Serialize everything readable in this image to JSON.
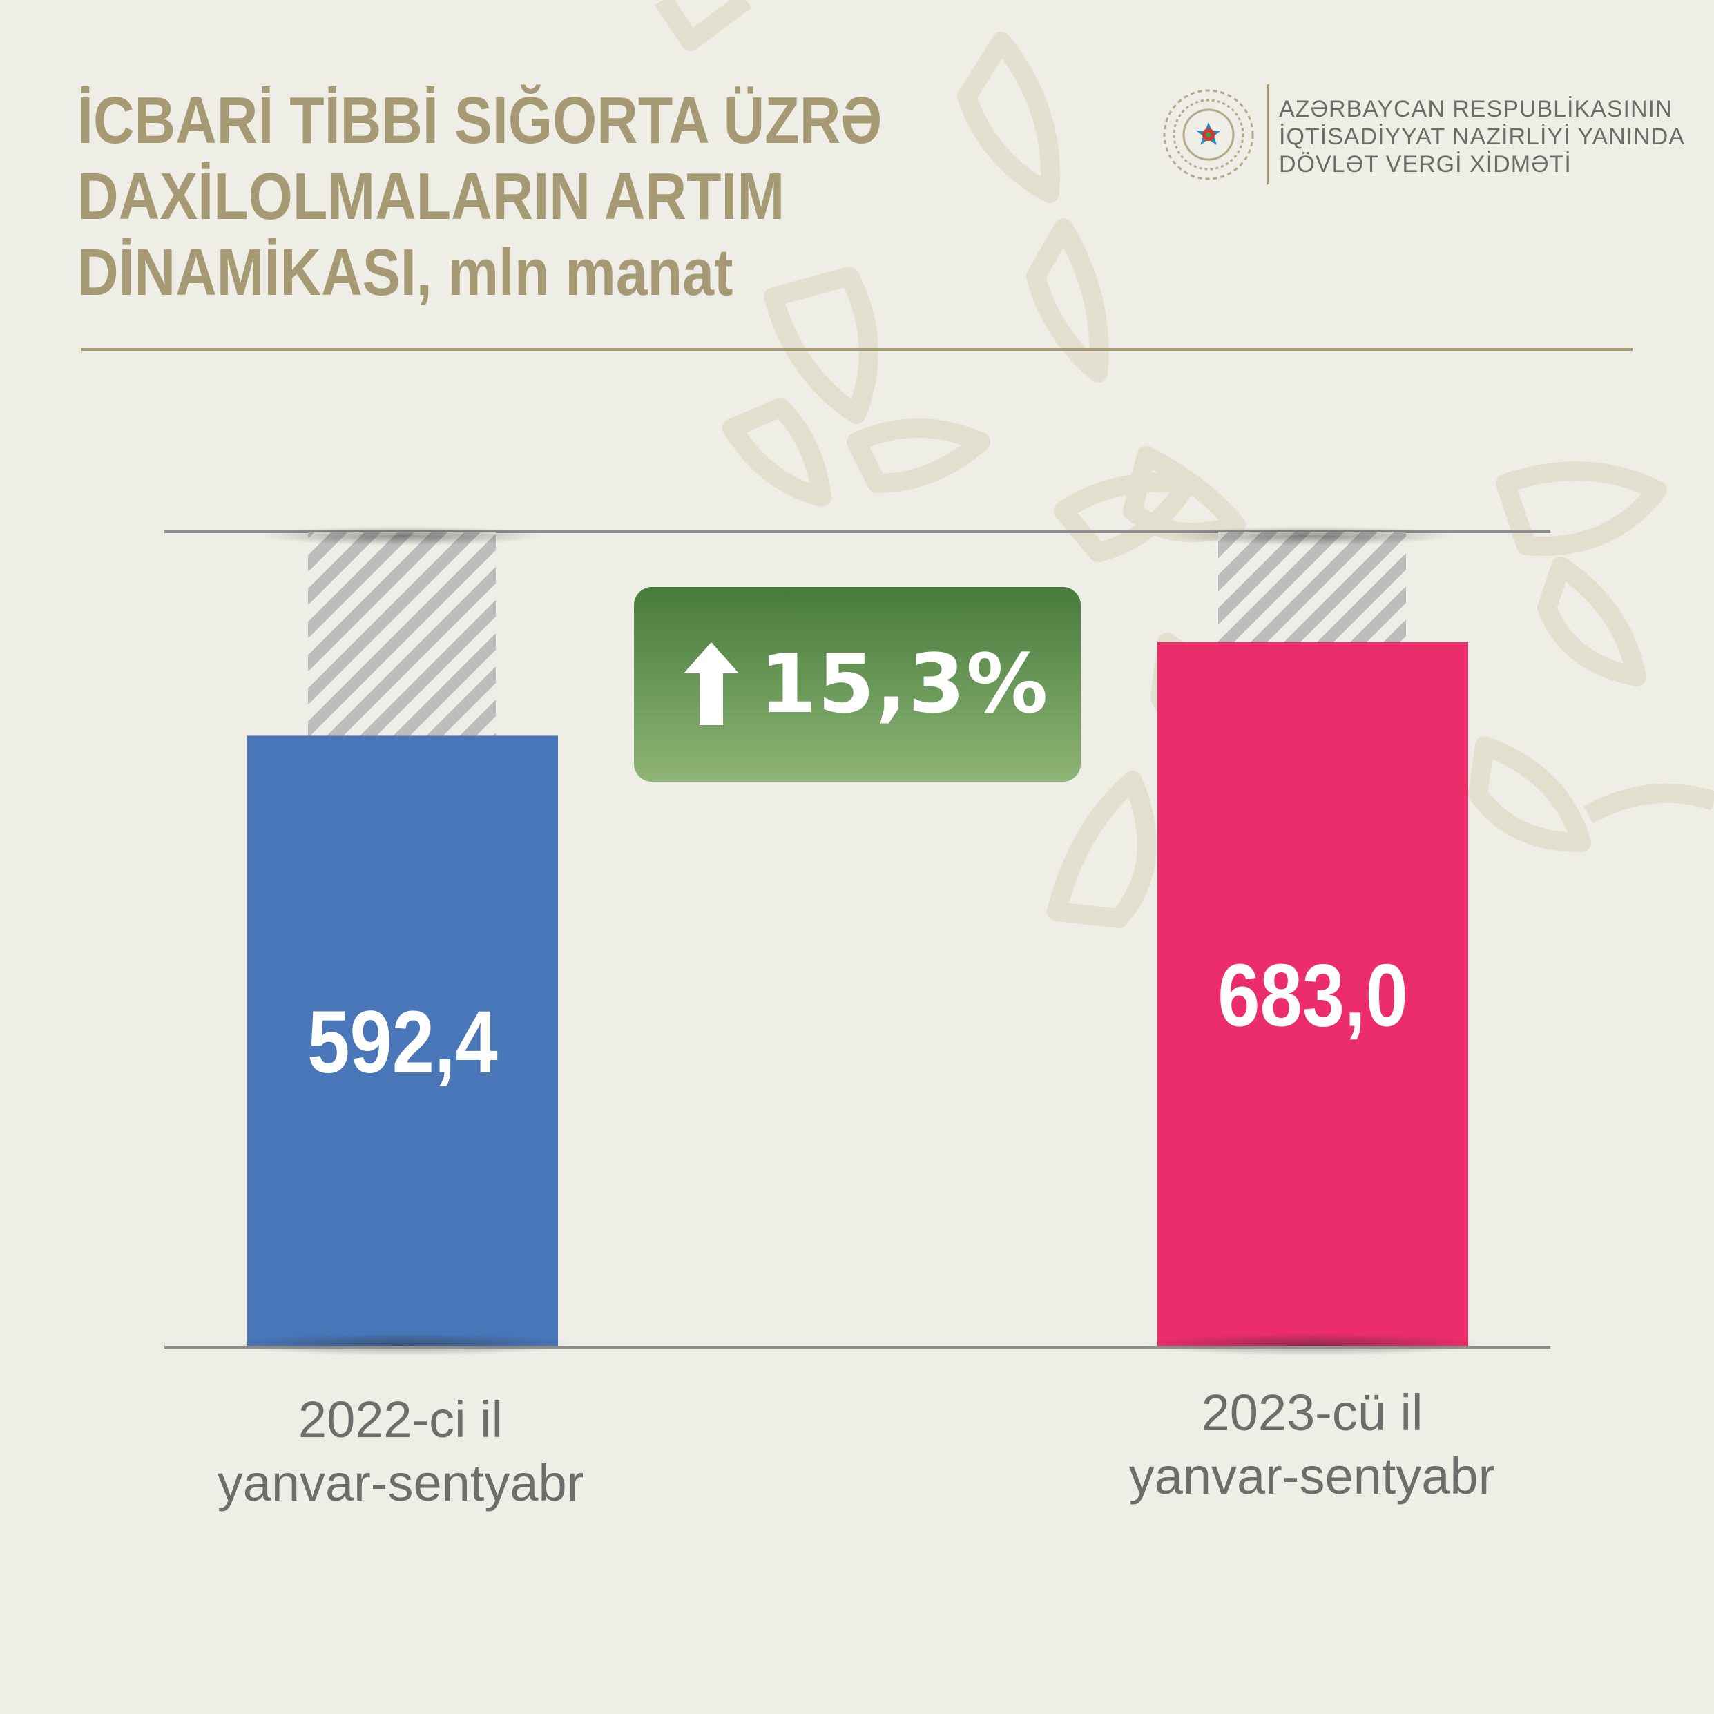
{
  "title_lines": [
    "İCBARİ TİBBİ SIĞORTA ÜZRƏ",
    "DAXİLOLMALARIN ARTIM",
    "DİNAMİKASI, mln manat"
  ],
  "organization_lines": [
    "AZƏRBAYCAN RESPUBLİKASININ",
    "İQTİSADİYYAT NAZİRLİYİ YANINDA",
    "DÖVLƏT VERGİ XİDMƏTİ"
  ],
  "logo_icon": "state-emblem-icon",
  "growth": {
    "icon": "arrow-up-icon",
    "label": "15,3%"
  },
  "colors": {
    "title": "#a59a73",
    "bar_2022": "#4876b8",
    "bar_2023": "#eb2d6b",
    "badge": "#5a8a4a",
    "hatch": "#bdbdbd"
  },
  "chart_data": {
    "type": "bar",
    "categories": [
      "2022-ci il yanvar-sentyabr",
      "2023-cü il yanvar-sentyabr"
    ],
    "category_lines": [
      [
        "2022-ci il",
        "yanvar-sentyabr"
      ],
      [
        "2023-cü il",
        "yanvar-sentyabr"
      ]
    ],
    "values": [
      592.4,
      683.0
    ],
    "value_labels": [
      "592,4",
      "683,0"
    ],
    "ylim": [
      0,
      790
    ],
    "title": "İCBARİ TİBBİ SIĞORTA ÜZRƏ DAXİLOLMALARIN ARTIM DİNAMİKASI, mln manat",
    "grid": false
  }
}
